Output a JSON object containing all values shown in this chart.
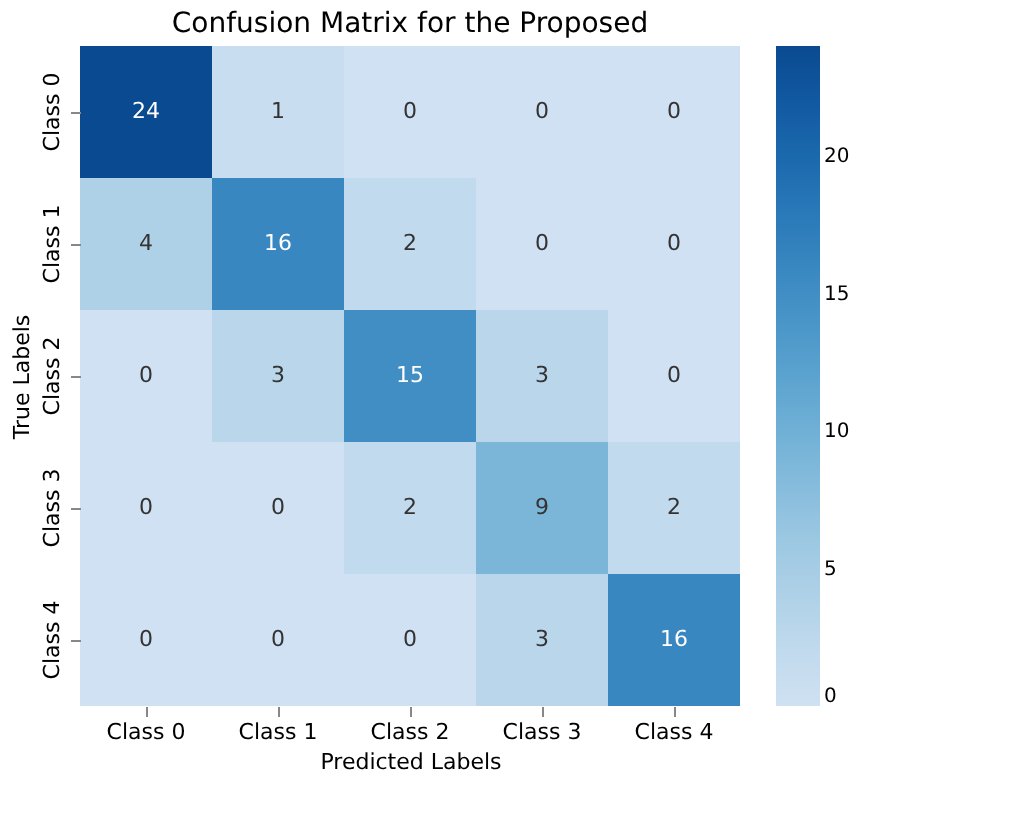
{
  "chart_data": {
    "type": "heatmap",
    "title": "Confusion Matrix for the Proposed",
    "xlabel": "Predicted Labels",
    "ylabel": "True Labels",
    "categories": [
      "Class 0",
      "Class 1",
      "Class 2",
      "Class 3",
      "Class 4"
    ],
    "y_categories": [
      "Class 0",
      "Class 1",
      "Class 2",
      "Class 3",
      "Class 4"
    ],
    "cells": [
      [
        24,
        1,
        0,
        0,
        0
      ],
      [
        4,
        16,
        2,
        0,
        0
      ],
      [
        0,
        3,
        15,
        3,
        0
      ],
      [
        0,
        0,
        2,
        9,
        2
      ],
      [
        0,
        0,
        0,
        3,
        16
      ]
    ],
    "data_labels": true,
    "clim": [
      0,
      24
    ],
    "cticks": [
      0,
      5,
      10,
      15,
      20
    ]
  }
}
